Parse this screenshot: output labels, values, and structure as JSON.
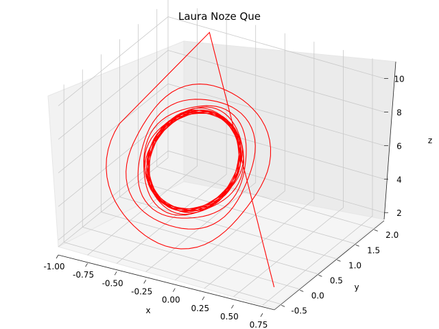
{
  "chart_data": {
    "type": "line3d",
    "title": "Laura Noze Que",
    "xlabel": "x",
    "ylabel": "y",
    "zlabel": "z",
    "xlim": [
      -1.0,
      0.85
    ],
    "ylim": [
      -0.65,
      2.3
    ],
    "zlim": [
      1.6,
      11.0
    ],
    "x_ticks": [
      "-1.00",
      "-0.75",
      "-0.50",
      "-0.25",
      "0.00",
      "0.25",
      "0.50",
      "0.75"
    ],
    "y_ticks": [
      "-0.5",
      "0.0",
      "0.5",
      "1.0",
      "1.5",
      "2.0"
    ],
    "z_ticks": [
      "2",
      "4",
      "6",
      "8",
      "10"
    ],
    "grid": true,
    "series": [
      {
        "color": "#ff0000",
        "start": [
          0.8,
          -0.5,
          2.5
        ],
        "transient_end": [
          -0.55,
          2.0,
          10.5
        ],
        "limit_cycle": {
          "center": [
            -0.3,
            0.8,
            5.5
          ],
          "half_width_x": 0.32,
          "half_height_z": 2.4
        }
      }
    ]
  }
}
